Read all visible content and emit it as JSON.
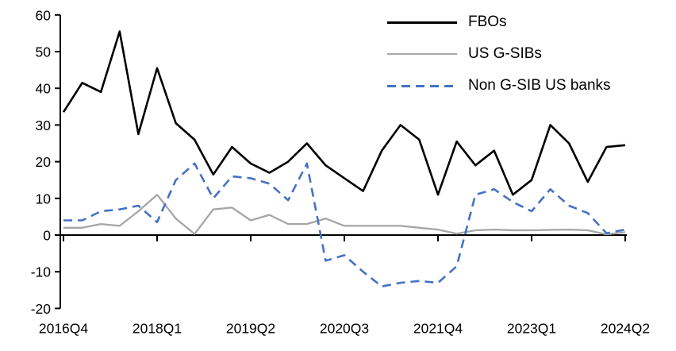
{
  "chart_data": {
    "type": "line",
    "title": "",
    "xlabel": "",
    "ylabel": "",
    "ylim": [
      -20,
      60
    ],
    "y_ticks": [
      60,
      50,
      40,
      30,
      20,
      10,
      0,
      -10,
      -20
    ],
    "x_tick_indices": [
      0,
      5,
      10,
      15,
      20,
      25,
      30
    ],
    "x_tick_labels": [
      "2016Q4",
      "2018Q1",
      "2019Q2",
      "2020Q3",
      "2021Q4",
      "2023Q1",
      "2024Q2"
    ],
    "grid": false,
    "legend_position": "top-right",
    "axis_color": "#000000",
    "categories": [
      "2016Q4",
      "2017Q1",
      "2017Q2",
      "2017Q3",
      "2017Q4",
      "2018Q1",
      "2018Q2",
      "2018Q3",
      "2018Q4",
      "2019Q1",
      "2019Q2",
      "2019Q3",
      "2019Q4",
      "2020Q1",
      "2020Q2",
      "2020Q3",
      "2020Q4",
      "2021Q1",
      "2021Q2",
      "2021Q3",
      "2021Q4",
      "2022Q1",
      "2022Q2",
      "2022Q3",
      "2022Q4",
      "2023Q1",
      "2023Q2",
      "2023Q3",
      "2023Q4",
      "2024Q1",
      "2024Q2"
    ],
    "series": [
      {
        "name": "FBOs",
        "color": "#000000",
        "style": "solid",
        "values": [
          33.5,
          41.5,
          39,
          55.5,
          27.5,
          45.5,
          30.5,
          26,
          16.5,
          24,
          19.5,
          17,
          20,
          25,
          19,
          15.5,
          12,
          23,
          30,
          26,
          11,
          25.5,
          19,
          23,
          11,
          15,
          30,
          25,
          14.5,
          24,
          24.5
        ]
      },
      {
        "name": "US G-SIBs",
        "color": "#a6a6a6",
        "style": "solid",
        "values": [
          2,
          2,
          3,
          2.5,
          6.5,
          11,
          4.5,
          0.3,
          7,
          7.5,
          4,
          5.5,
          3,
          3,
          4.5,
          2.5,
          2.5,
          2.5,
          2.5,
          2,
          1.5,
          0.4,
          1.3,
          1.5,
          1.3,
          1.3,
          1.4,
          1.5,
          1.3,
          0.2,
          0.8
        ]
      },
      {
        "name": "Non G-SIB US banks",
        "color": "#4472c4",
        "style": "dashed",
        "values": [
          4,
          4,
          6.5,
          7,
          8,
          3.5,
          15,
          19.5,
          10,
          16,
          15.5,
          14,
          9.5,
          19.5,
          -7,
          -5.5,
          -10,
          -14,
          -13,
          -12.5,
          -13,
          -8.5,
          11,
          12.5,
          9,
          6.5,
          12.5,
          8,
          6,
          0.5,
          1.5
        ]
      }
    ]
  }
}
